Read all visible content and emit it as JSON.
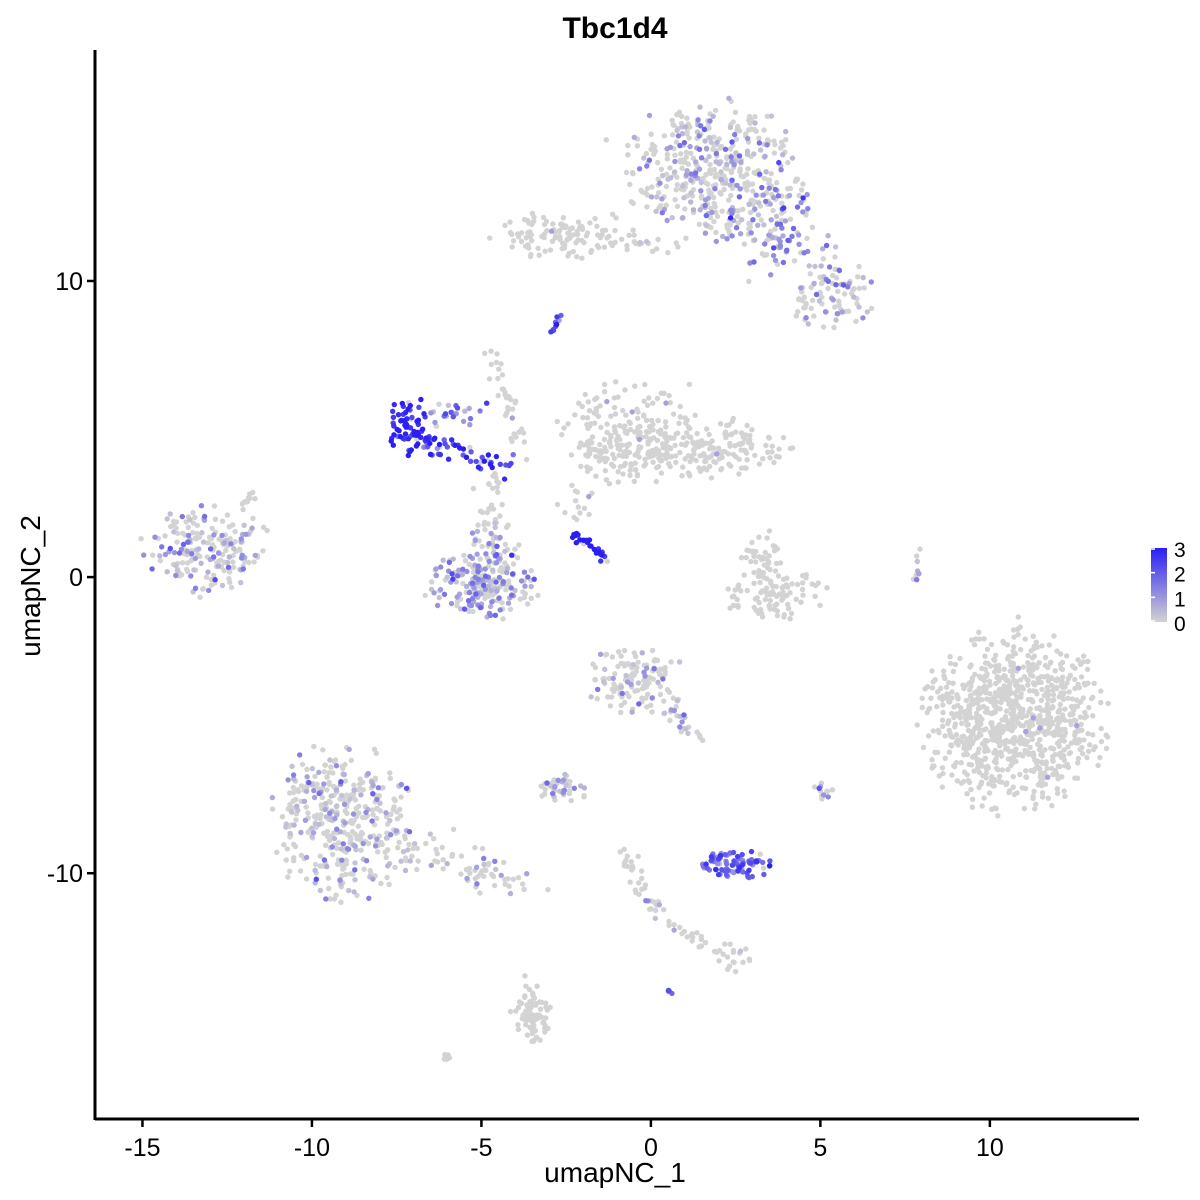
{
  "chart_data": {
    "type": "scatter",
    "title": "Tbc1d4",
    "xlabel": "umapNC_1",
    "ylabel": "umapNC_2",
    "xlim": [
      -16.4,
      14.4
    ],
    "ylim": [
      -18.3,
      17.8
    ],
    "x_ticks": [
      -15,
      -10,
      -5,
      0,
      5,
      10
    ],
    "x_tick_labels": [
      "-15",
      "-10",
      "-5",
      "0",
      "5",
      "10"
    ],
    "y_ticks": [
      -10,
      0,
      10
    ],
    "y_tick_labels": [
      "-10",
      "0",
      "10"
    ],
    "grid": false,
    "legend_placement": "right",
    "color_low": "#d3d3d3",
    "color_high": "#2a1ef5",
    "color_scale": {
      "min": 0,
      "max": 3,
      "ticks": [
        0,
        1,
        2,
        3
      ],
      "tick_labels": [
        "0",
        "1",
        "2",
        "3"
      ]
    },
    "clusters": [
      {
        "cx": 1.8,
        "cy": 13.8,
        "sx": 1.3,
        "sy": 1.1,
        "n": 420,
        "expr": 0.35
      },
      {
        "cx": 3.6,
        "cy": 11.6,
        "sx": 0.9,
        "sy": 0.8,
        "n": 110,
        "expr": 0.7
      },
      {
        "cx": 5.4,
        "cy": 9.6,
        "sx": 0.7,
        "sy": 0.6,
        "n": 90,
        "expr": 0.45
      },
      {
        "cx": -2.6,
        "cy": 11.6,
        "sx": 1.0,
        "sy": 0.4,
        "n": 110,
        "expr": 0.02
      },
      {
        "cx": -0.6,
        "cy": 4.9,
        "sx": 1.0,
        "sy": 0.9,
        "n": 200,
        "expr": 0.02
      },
      {
        "cx": 1.7,
        "cy": 4.3,
        "sx": 1.2,
        "sy": 0.5,
        "n": 170,
        "expr": 0.02
      },
      {
        "cx": -7.2,
        "cy": 5.2,
        "sx": 0.3,
        "sy": 0.5,
        "n": 60,
        "expr": 2.6
      },
      {
        "cx": -13.1,
        "cy": 1.0,
        "sx": 0.9,
        "sy": 0.7,
        "n": 200,
        "expr": 0.4
      },
      {
        "cx": -5.0,
        "cy": -0.2,
        "sx": 0.8,
        "sy": 0.6,
        "n": 200,
        "expr": 0.6
      },
      {
        "cx": -4.7,
        "cy": 1.0,
        "sx": 0.4,
        "sy": 0.7,
        "n": 60,
        "expr": 0.3
      },
      {
        "cx": 3.6,
        "cy": -0.6,
        "sx": 0.8,
        "sy": 0.4,
        "n": 90,
        "expr": 0.02
      },
      {
        "cx": 3.3,
        "cy": 0.7,
        "sx": 0.3,
        "sy": 0.5,
        "n": 40,
        "expr": 0.02
      },
      {
        "cx": 10.7,
        "cy": -4.9,
        "sx": 1.3,
        "sy": 1.5,
        "n": 900,
        "expr": 0.01
      },
      {
        "cx": -9.1,
        "cy": -8.3,
        "sx": 1.0,
        "sy": 1.3,
        "n": 380,
        "expr": 0.3
      },
      {
        "cx": -0.4,
        "cy": -3.5,
        "sx": 0.7,
        "sy": 0.6,
        "n": 130,
        "expr": 0.2
      },
      {
        "cx": 2.5,
        "cy": -9.7,
        "sx": 0.5,
        "sy": 0.25,
        "n": 90,
        "expr": 1.3
      },
      {
        "cx": -2.6,
        "cy": -7.1,
        "sx": 0.4,
        "sy": 0.25,
        "n": 40,
        "expr": 0.5
      },
      {
        "cx": -3.5,
        "cy": -14.9,
        "sx": 0.3,
        "sy": 0.5,
        "n": 60,
        "expr": 0.02
      },
      {
        "cx": 2.4,
        "cy": -12.8,
        "sx": 0.3,
        "sy": 0.25,
        "n": 20,
        "expr": 0.1
      },
      {
        "cx": 5.1,
        "cy": -7.2,
        "sx": 0.2,
        "sy": 0.2,
        "n": 12,
        "expr": 0.2
      }
    ],
    "streams": [
      {
        "from": [
          -6.8,
          4.6
        ],
        "to": [
          -4.2,
          3.8
        ],
        "n": 55,
        "spread": 0.22,
        "expr": 2.0
      },
      {
        "from": [
          -6.5,
          5.5
        ],
        "to": [
          -5.0,
          5.5
        ],
        "n": 22,
        "spread": 0.2,
        "expr": 0.9
      },
      {
        "from": [
          -2.3,
          1.5
        ],
        "to": [
          -1.2,
          0.6
        ],
        "n": 28,
        "spread": 0.08,
        "expr": 2.9
      },
      {
        "from": [
          -2.9,
          8.4
        ],
        "to": [
          -2.6,
          8.9
        ],
        "n": 10,
        "spread": 0.06,
        "expr": 1.9
      },
      {
        "from": [
          -4.7,
          7.7
        ],
        "to": [
          -3.7,
          4.2
        ],
        "n": 35,
        "spread": 0.15,
        "expr": 0.02
      },
      {
        "from": [
          -4.6,
          3.8
        ],
        "to": [
          -4.8,
          2.3
        ],
        "n": 20,
        "spread": 0.2,
        "expr": 0.02
      },
      {
        "from": [
          -8.4,
          -8.7
        ],
        "to": [
          -3.9,
          -10.3
        ],
        "n": 90,
        "spread": 0.35,
        "expr": 0.3
      },
      {
        "from": [
          -1.4,
          11.3
        ],
        "to": [
          0.7,
          11.3
        ],
        "n": 22,
        "spread": 0.15,
        "expr": 0.1
      },
      {
        "from": [
          -1.1,
          4.9
        ],
        "to": [
          -2.3,
          2.0
        ],
        "n": 30,
        "spread": 0.18,
        "expr": 0.02
      },
      {
        "from": [
          -0.8,
          -9.3
        ],
        "to": [
          0.3,
          -11.5
        ],
        "n": 35,
        "spread": 0.15,
        "expr": 0.05
      },
      {
        "from": [
          0.3,
          -11.5
        ],
        "to": [
          2.0,
          -12.7
        ],
        "n": 20,
        "spread": 0.12,
        "expr": 0.05
      },
      {
        "from": [
          0.6,
          -4.3
        ],
        "to": [
          1.3,
          -5.5
        ],
        "n": 20,
        "spread": 0.12,
        "expr": 0.4
      },
      {
        "from": [
          7.9,
          0.9
        ],
        "to": [
          7.8,
          -0.2
        ],
        "n": 8,
        "spread": 0.05,
        "expr": 0.5
      },
      {
        "from": [
          -12.2,
          2.2
        ],
        "to": [
          -11.6,
          2.8
        ],
        "n": 10,
        "spread": 0.08,
        "expr": 0.02
      },
      {
        "from": [
          -3.7,
          -13.4
        ],
        "to": [
          -3.5,
          -15.5
        ],
        "n": 20,
        "spread": 0.12,
        "expr": 0.02
      },
      {
        "from": [
          -6.2,
          -16.4
        ],
        "to": [
          -5.9,
          -16.1
        ],
        "n": 6,
        "spread": 0.05,
        "expr": 0.02
      },
      {
        "from": [
          0.5,
          -14.0
        ],
        "to": [
          0.6,
          -14.0
        ],
        "n": 4,
        "spread": 0.04,
        "expr": 1.6
      }
    ]
  }
}
